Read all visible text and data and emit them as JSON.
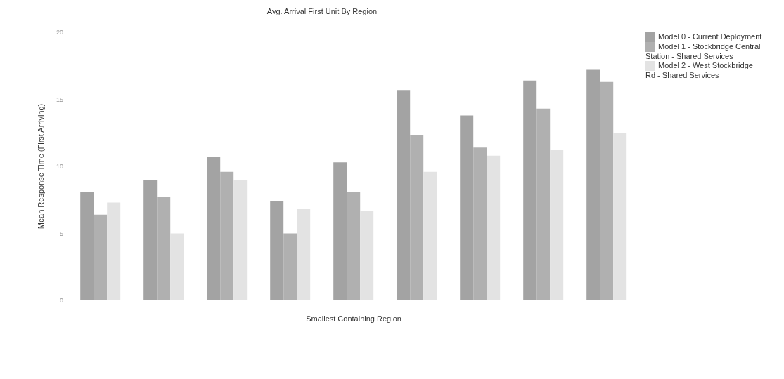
{
  "chart_data": {
    "type": "bar",
    "title": "Avg. Arrival First Unit By Region",
    "xlabel": "Smallest Containing Region",
    "ylabel": "Mean Response Time (First Arriving)",
    "categories": [
      null,
      null,
      null,
      null,
      null,
      null,
      null,
      null,
      null
    ],
    "series": [
      {
        "name": "Model 0 - Current Deployment",
        "color": "#a3a3a3",
        "values": [
          8.1,
          9.0,
          10.7,
          7.4,
          10.3,
          15.7,
          13.8,
          16.4,
          17.2
        ]
      },
      {
        "name": "Model 1 - Stockbridge Central Station - Shared Services",
        "color": "#b0b0b0",
        "values": [
          6.4,
          7.7,
          9.6,
          5.0,
          8.1,
          12.3,
          11.4,
          14.3,
          16.3
        ]
      },
      {
        "name": "Model 2 - West Stockbridge Rd - Shared Services",
        "color": "#e3e3e3",
        "values": [
          7.3,
          5.0,
          9.0,
          6.8,
          6.7,
          9.6,
          10.8,
          11.2,
          12.5
        ]
      }
    ],
    "ylim": [
      0,
      20
    ],
    "yticks": [
      0,
      5,
      10,
      15,
      20
    ],
    "grid": false,
    "legend": "top right"
  }
}
